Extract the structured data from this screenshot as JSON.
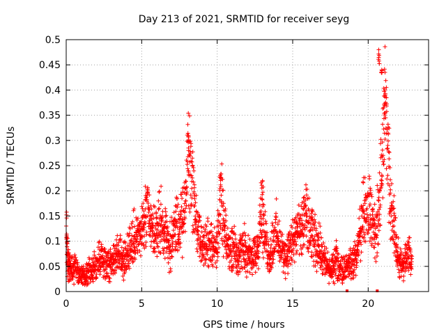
{
  "chart_data": {
    "type": "scatter",
    "title": "Day 213 of 2021, SRMTID for receiver seyg",
    "xlabel": "GPS time / hours",
    "ylabel": "SRMTID / TECUs",
    "xlim": [
      0,
      24
    ],
    "ylim": [
      0,
      0.5
    ],
    "x_ticks": [
      0,
      5,
      10,
      15,
      20
    ],
    "x_tick_labels": [
      "0",
      "5",
      "10",
      "15",
      "20"
    ],
    "y_ticks": [
      0,
      0.05,
      0.1,
      0.15,
      0.2,
      0.25,
      0.3,
      0.35,
      0.4,
      0.45,
      0.5
    ],
    "y_tick_labels": [
      "0",
      "0.05",
      "0.1",
      "0.15",
      "0.2",
      "0.25",
      "0.3",
      "0.35",
      "0.4",
      "0.45",
      "0.5"
    ],
    "grid": true,
    "marker": "+",
    "color": "#ff0000",
    "series": [
      {
        "name": "SRMTID",
        "x": [
          0.0,
          0.1,
          0.2,
          0.3,
          0.5,
          0.7,
          0.9,
          1.1,
          1.3,
          1.5,
          1.7,
          1.9,
          2.1,
          2.3,
          2.5,
          2.7,
          2.9,
          3.1,
          3.3,
          3.5,
          3.7,
          3.9,
          4.1,
          4.3,
          4.5,
          4.7,
          4.9,
          5.1,
          5.3,
          5.5,
          5.7,
          5.9,
          6.1,
          6.3,
          6.5,
          6.7,
          6.9,
          7.1,
          7.3,
          7.5,
          7.7,
          7.9,
          8.1,
          8.3,
          8.5,
          8.7,
          8.9,
          9.1,
          9.3,
          9.5,
          9.7,
          9.9,
          10.1,
          10.3,
          10.5,
          10.7,
          10.9,
          11.1,
          11.3,
          11.5,
          11.7,
          11.9,
          12.1,
          12.3,
          12.5,
          12.7,
          12.9,
          13.1,
          13.3,
          13.5,
          13.7,
          13.9,
          14.1,
          14.3,
          14.5,
          14.7,
          14.9,
          15.1,
          15.3,
          15.5,
          15.7,
          15.9,
          16.1,
          16.3,
          16.5,
          16.7,
          16.9,
          17.1,
          17.3,
          17.5,
          17.7,
          17.9,
          18.1,
          18.3,
          18.5,
          18.7,
          18.9,
          19.1,
          19.3,
          19.5,
          19.7,
          19.9,
          20.1,
          20.3,
          20.5,
          20.7,
          20.9,
          21.1,
          21.3,
          21.5,
          21.7,
          21.9,
          22.1,
          22.3,
          22.5,
          22.7,
          22.9
        ],
        "y": [
          0.13,
          0.06,
          0.05,
          0.04,
          0.05,
          0.04,
          0.03,
          0.03,
          0.03,
          0.04,
          0.04,
          0.05,
          0.06,
          0.07,
          0.06,
          0.06,
          0.05,
          0.07,
          0.07,
          0.08,
          0.06,
          0.07,
          0.08,
          0.09,
          0.11,
          0.1,
          0.11,
          0.13,
          0.15,
          0.14,
          0.12,
          0.11,
          0.13,
          0.14,
          0.12,
          0.1,
          0.09,
          0.11,
          0.13,
          0.12,
          0.14,
          0.18,
          0.28,
          0.23,
          0.17,
          0.12,
          0.1,
          0.09,
          0.09,
          0.1,
          0.09,
          0.08,
          0.14,
          0.17,
          0.11,
          0.09,
          0.08,
          0.09,
          0.08,
          0.07,
          0.09,
          0.08,
          0.07,
          0.06,
          0.08,
          0.09,
          0.16,
          0.12,
          0.08,
          0.07,
          0.1,
          0.12,
          0.09,
          0.08,
          0.07,
          0.08,
          0.09,
          0.1,
          0.12,
          0.11,
          0.13,
          0.15,
          0.12,
          0.11,
          0.1,
          0.09,
          0.08,
          0.06,
          0.05,
          0.04,
          0.05,
          0.06,
          0.05,
          0.04,
          0.05,
          0.06,
          0.05,
          0.06,
          0.08,
          0.12,
          0.16,
          0.14,
          0.17,
          0.13,
          0.11,
          0.18,
          0.22,
          0.37,
          0.29,
          0.16,
          0.13,
          0.08,
          0.06,
          0.05,
          0.06,
          0.07,
          0.07
        ],
        "zeros_x": [
          18.6,
          20.6
        ]
      }
    ],
    "peaks": [
      {
        "x": 8.1,
        "y": 0.31
      },
      {
        "x": 10.2,
        "y": 0.23
      },
      {
        "x": 13.0,
        "y": 0.22
      },
      {
        "x": 20.7,
        "y": 0.48
      },
      {
        "x": 20.9,
        "y": 0.44
      },
      {
        "x": 21.1,
        "y": 0.4
      }
    ]
  }
}
